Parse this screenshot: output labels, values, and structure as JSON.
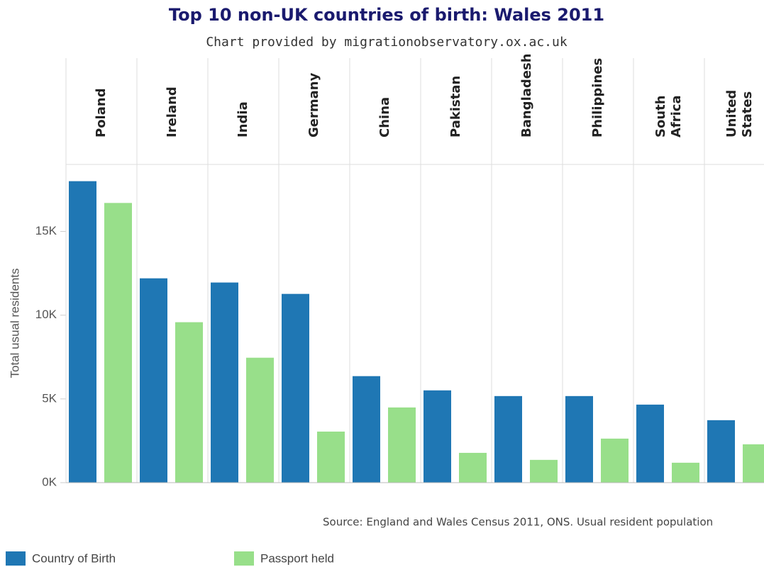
{
  "chart_data": {
    "type": "bar",
    "title": "Top 10 non-UK countries of birth: Wales 2011",
    "subtitle": "Chart provided by migrationobservatory.ox.ac.uk",
    "y_label": "Total usual residents",
    "source": "Source: England and Wales Census 2011, ONS. Usual resident population",
    "categories": [
      "Poland",
      "Ireland",
      "India",
      "Germany",
      "China",
      "Pakistan",
      "Bangladesh",
      "Philippines",
      "South Africa",
      "United States"
    ],
    "series": [
      {
        "name": "Country of Birth",
        "color": "#1f77b4",
        "values": [
          18000,
          12200,
          11950,
          11270,
          6360,
          5510,
          5170,
          5170,
          4660,
          3730
        ]
      },
      {
        "name": "Passport held",
        "color": "#98df8a",
        "values": [
          16700,
          9580,
          7460,
          3050,
          4490,
          1780,
          1360,
          2630,
          1190,
          2290
        ]
      }
    ],
    "ylim": [
      0,
      19000
    ],
    "yticks": [
      {
        "value": 0,
        "label": "0K"
      },
      {
        "value": 5000,
        "label": "5K"
      },
      {
        "value": 10000,
        "label": "10K"
      },
      {
        "value": 15000,
        "label": "15K"
      }
    ]
  }
}
